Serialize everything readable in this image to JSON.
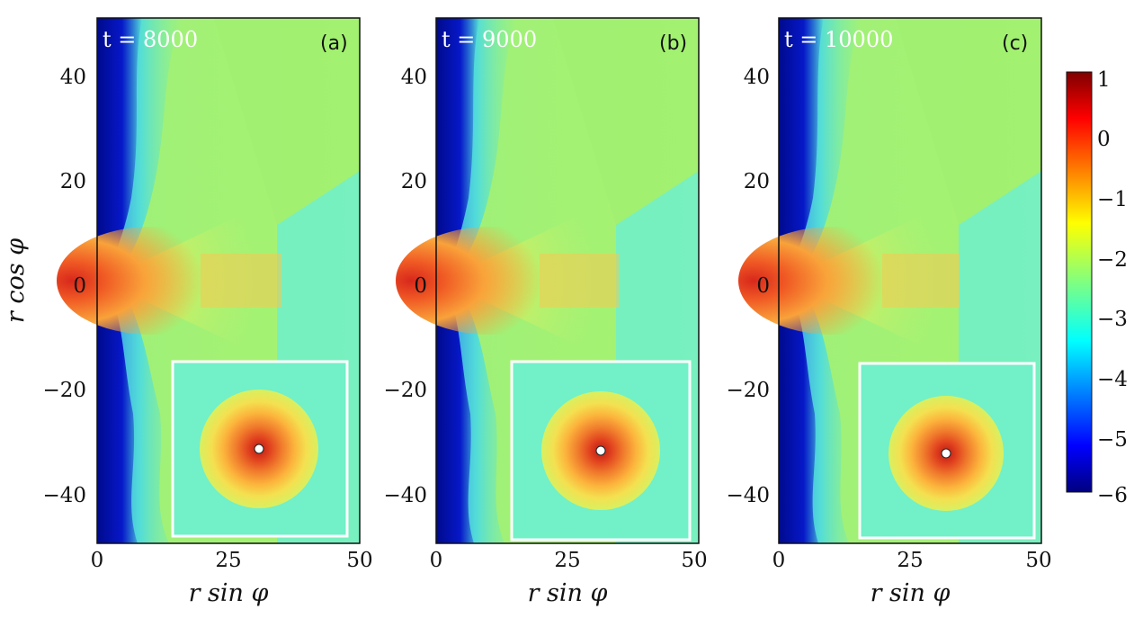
{
  "chart_data": {
    "type": "heatmap",
    "panels": [
      {
        "id": "a",
        "tag": "(a)",
        "time_label": "t = 8000"
      },
      {
        "id": "b",
        "tag": "(b)",
        "time_label": "t = 9000"
      },
      {
        "id": "c",
        "tag": "(c)",
        "time_label": "t = 10000"
      }
    ],
    "xlabel": "r  sin φ",
    "ylabel": "r  cos φ",
    "xlim": [
      0,
      50
    ],
    "ylim": [
      -50,
      50
    ],
    "xticks": [
      "0",
      "25",
      "50"
    ],
    "yticks": [
      "40",
      "20",
      "0",
      "−20",
      "−40"
    ],
    "colorbar": {
      "colormap": "jet",
      "range": [
        -6,
        1
      ],
      "ticks": [
        "1",
        "0",
        "−1",
        "−2",
        "−3",
        "−4",
        "−5",
        "−6"
      ]
    }
  },
  "colors": {
    "jet_low": "#00007f",
    "jet_high": "#7f0000",
    "inset_frame": "#ffffff"
  }
}
